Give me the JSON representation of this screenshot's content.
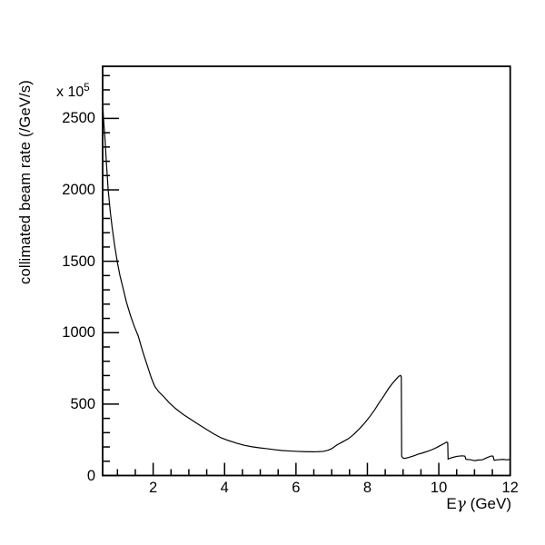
{
  "chart_data": {
    "type": "line",
    "title": "",
    "xlabel": "Eγ (GeV)",
    "xlabel_parts": {
      "prefix": "E",
      "gamma": "γ",
      "suffix": " (GeV)"
    },
    "ylabel": "collimated beam rate (/GeV/s)",
    "y_scale_factor": {
      "base": "x 10",
      "exponent": "5"
    },
    "xlim": [
      0.585,
      12.0
    ],
    "ylim": [
      0,
      2865
    ],
    "x_major_ticks": [
      2,
      4,
      6,
      8,
      10,
      12
    ],
    "x_major_labels": [
      "2",
      "4",
      "6",
      "8",
      "10",
      "12"
    ],
    "x_minor_tick_step": 0.5,
    "y_major_ticks": [
      0,
      500,
      1000,
      1500,
      2000,
      2500
    ],
    "y_major_labels": [
      "0",
      "500",
      "1000",
      "1500",
      "2000",
      "2500"
    ],
    "y_minor_tick_step": 100,
    "grid": false,
    "legend": false,
    "line_color": "#000000",
    "frame_color": "#000000",
    "background": "#ffffff",
    "annotations": {
      "coherent_peak_energy_gev": 8.93,
      "coherent_peak_rate": 701,
      "minimum_rate": 166,
      "minimum_energy_gev": 6.45,
      "secondary_peak_energy_gev": 10.22,
      "secondary_peak_rate": 234
    },
    "series": [
      {
        "name": "collimated beam rate",
        "points": [
          [
            0.585,
            2600
          ],
          [
            0.6,
            2540
          ],
          [
            0.62,
            2460
          ],
          [
            0.65,
            2360
          ],
          [
            0.69,
            2190
          ],
          [
            0.74,
            2000
          ],
          [
            0.8,
            1845
          ],
          [
            0.85,
            1740
          ],
          [
            0.92,
            1612
          ],
          [
            1.0,
            1490
          ],
          [
            1.07,
            1400
          ],
          [
            1.15,
            1318
          ],
          [
            1.25,
            1215
          ],
          [
            1.36,
            1124
          ],
          [
            1.47,
            1045
          ],
          [
            1.58,
            978
          ],
          [
            1.72,
            858
          ],
          [
            1.87,
            744
          ],
          [
            1.95,
            682
          ],
          [
            2.04,
            627
          ],
          [
            2.15,
            588
          ],
          [
            2.3,
            551
          ],
          [
            2.45,
            509
          ],
          [
            2.63,
            468
          ],
          [
            2.85,
            426
          ],
          [
            3.06,
            392
          ],
          [
            3.28,
            356
          ],
          [
            3.5,
            322
          ],
          [
            3.7,
            291
          ],
          [
            3.9,
            264
          ],
          [
            4.12,
            244
          ],
          [
            4.34,
            226
          ],
          [
            4.55,
            212
          ],
          [
            4.77,
            201
          ],
          [
            5.0,
            193
          ],
          [
            5.18,
            188
          ],
          [
            5.4,
            181
          ],
          [
            5.61,
            175
          ],
          [
            5.8,
            172
          ],
          [
            6.04,
            169
          ],
          [
            6.25,
            167
          ],
          [
            6.45,
            166
          ],
          [
            6.62,
            167
          ],
          [
            6.76,
            169
          ],
          [
            6.9,
            177
          ],
          [
            7.0,
            188
          ],
          [
            7.14,
            213
          ],
          [
            7.3,
            235
          ],
          [
            7.47,
            258
          ],
          [
            7.62,
            288
          ],
          [
            7.78,
            328
          ],
          [
            7.95,
            375
          ],
          [
            8.08,
            417
          ],
          [
            8.21,
            462
          ],
          [
            8.34,
            513
          ],
          [
            8.46,
            557
          ],
          [
            8.59,
            608
          ],
          [
            8.7,
            645
          ],
          [
            8.8,
            673
          ],
          [
            8.88,
            695
          ],
          [
            8.93,
            701
          ],
          [
            8.95,
            690
          ],
          [
            8.96,
            135
          ],
          [
            9.0,
            122
          ],
          [
            9.05,
            120
          ],
          [
            9.15,
            126
          ],
          [
            9.3,
            138
          ],
          [
            9.43,
            150
          ],
          [
            9.56,
            159
          ],
          [
            9.69,
            170
          ],
          [
            9.82,
            182
          ],
          [
            9.94,
            196
          ],
          [
            10.05,
            211
          ],
          [
            10.15,
            224
          ],
          [
            10.22,
            234
          ],
          [
            10.25,
            229
          ],
          [
            10.26,
            115
          ],
          [
            10.35,
            124
          ],
          [
            10.5,
            134
          ],
          [
            10.65,
            138
          ],
          [
            10.73,
            136
          ],
          [
            10.76,
            113
          ],
          [
            10.9,
            110
          ],
          [
            11.0,
            104
          ],
          [
            11.1,
            108
          ],
          [
            11.22,
            110
          ],
          [
            11.35,
            125
          ],
          [
            11.47,
            137
          ],
          [
            11.52,
            135
          ],
          [
            11.55,
            107
          ],
          [
            11.65,
            110
          ],
          [
            11.8,
            113
          ],
          [
            11.9,
            110
          ],
          [
            12.0,
            112
          ]
        ]
      }
    ]
  }
}
